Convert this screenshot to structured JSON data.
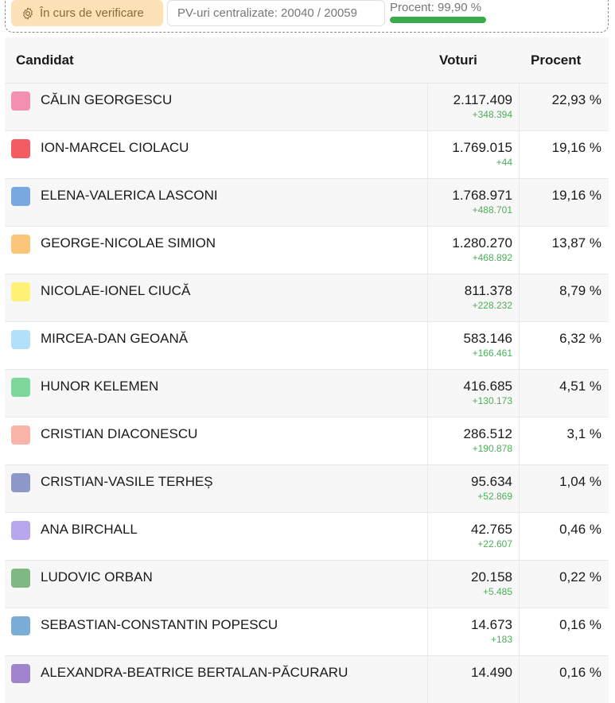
{
  "topbar": {
    "status_label": "În curs de verificare",
    "pv_label": "PV-uri centralizate: 20040 / 20059",
    "progress_label": "Procent: 99,90 %",
    "progress_value": 99.9,
    "progress_color": "#3aab4a"
  },
  "table": {
    "headers": {
      "candidate": "Candidat",
      "votes": "Voturi",
      "percent": "Procent"
    },
    "rows": [
      {
        "name": "CĂLIN GEORGESCU",
        "votes": "2.117.409",
        "delta": "+348.394",
        "percent": "22,93 %",
        "color": "#f48fb1"
      },
      {
        "name": "ION-MARCEL CIOLACU",
        "votes": "1.769.015",
        "delta": "+44",
        "percent": "19,16 %",
        "color": "#f25c62"
      },
      {
        "name": "ELENA-VALERICA LASCONI",
        "votes": "1.768.971",
        "delta": "+488.701",
        "percent": "19,16 %",
        "color": "#79a8e0"
      },
      {
        "name": "GEORGE-NICOLAE SIMION",
        "votes": "1.280.270",
        "delta": "+468.892",
        "percent": "13,87 %",
        "color": "#fbc67a"
      },
      {
        "name": "NICOLAE-IONEL CIUCĂ",
        "votes": "811.378",
        "delta": "+228.232",
        "percent": "8,79 %",
        "color": "#fff176"
      },
      {
        "name": "MIRCEA-DAN GEOANĂ",
        "votes": "583.146",
        "delta": "+166.461",
        "percent": "6,32 %",
        "color": "#b3e0fb"
      },
      {
        "name": "HUNOR KELEMEN",
        "votes": "416.685",
        "delta": "+130.173",
        "percent": "4,51 %",
        "color": "#7dd69a"
      },
      {
        "name": "CRISTIAN DIACONESCU",
        "votes": "286.512",
        "delta": "+190.878",
        "percent": "3,1 %",
        "color": "#fbb4a8"
      },
      {
        "name": "CRISTIAN-VASILE TERHEȘ",
        "votes": "95.634",
        "delta": "+52.869",
        "percent": "1,04 %",
        "color": "#8e98c8"
      },
      {
        "name": "ANA BIRCHALL",
        "votes": "42.765",
        "delta": "+22.607",
        "percent": "0,46 %",
        "color": "#b8a6ee"
      },
      {
        "name": "LUDOVIC ORBAN",
        "votes": "20.158",
        "delta": "+5.485",
        "percent": "0,22 %",
        "color": "#7fb883"
      },
      {
        "name": "SEBASTIAN-CONSTANTIN POPESCU",
        "votes": "14.673",
        "delta": "+183",
        "percent": "0,16 %",
        "color": "#7aaed8"
      },
      {
        "name": "ALEXANDRA-BEATRICE BERTALAN-PĂCURARU",
        "votes": "14.490",
        "delta": "",
        "percent": "0,16 %",
        "color": "#9e85cc"
      }
    ]
  }
}
